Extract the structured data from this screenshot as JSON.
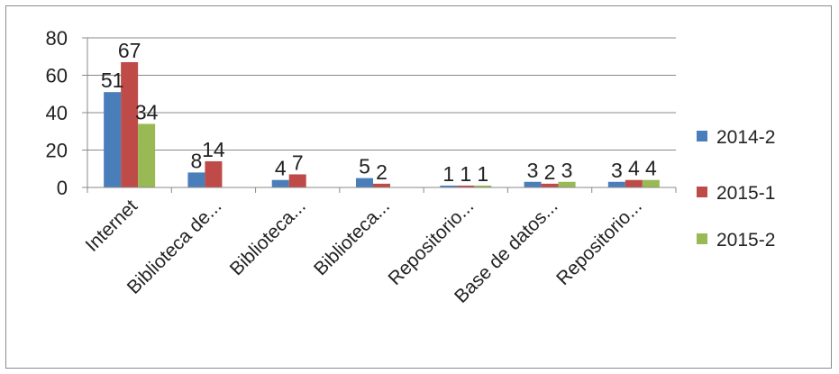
{
  "chart_data": {
    "type": "bar",
    "title": "",
    "xlabel": "",
    "ylabel": "",
    "ylim": [
      0,
      80
    ],
    "yticks": [
      0,
      20,
      40,
      60,
      80
    ],
    "grid": true,
    "legend": "right",
    "categories": [
      "Internet",
      "Biblioteca de...",
      "Biblioteca...",
      "Biblioteca...",
      "Repositorio...",
      "Base de datos...",
      "Repositorio..."
    ],
    "series": [
      {
        "name": "2014-2",
        "color": "#4a7ebb",
        "values": [
          51,
          8,
          4,
          5,
          1,
          3,
          3
        ],
        "labels": [
          "51",
          "8",
          "4",
          "5",
          "1",
          "3",
          "3"
        ]
      },
      {
        "name": "2015-1",
        "color": "#be4b48",
        "values": [
          67,
          14,
          7,
          2,
          1,
          2,
          4
        ],
        "labels": [
          "67",
          "14",
          "7",
          "2",
          "1",
          "2",
          "4"
        ]
      },
      {
        "name": "2015-2",
        "color": "#98b954",
        "values": [
          34,
          0,
          0,
          0,
          1,
          3,
          4
        ],
        "labels": [
          "34",
          "",
          "",
          "",
          "1",
          "3",
          "4"
        ]
      }
    ]
  }
}
